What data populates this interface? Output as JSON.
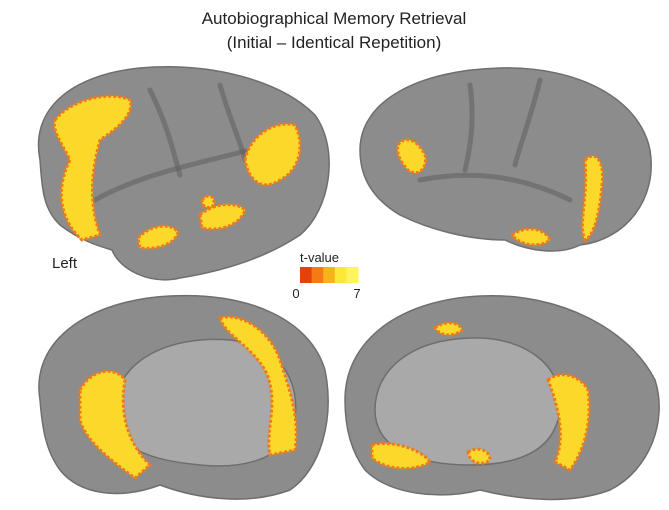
{
  "header": {
    "title": "Autobiographical Memory Retrieval",
    "subtitle": "(Initial – Identical Repetition)"
  },
  "hemisphere_label": "Left",
  "colorbar": {
    "label": "t-value",
    "min": 0,
    "max": 7,
    "colors": [
      "#e8400c",
      "#f47a14",
      "#f7b21c",
      "#fde83a",
      "#fff45c"
    ]
  }
}
